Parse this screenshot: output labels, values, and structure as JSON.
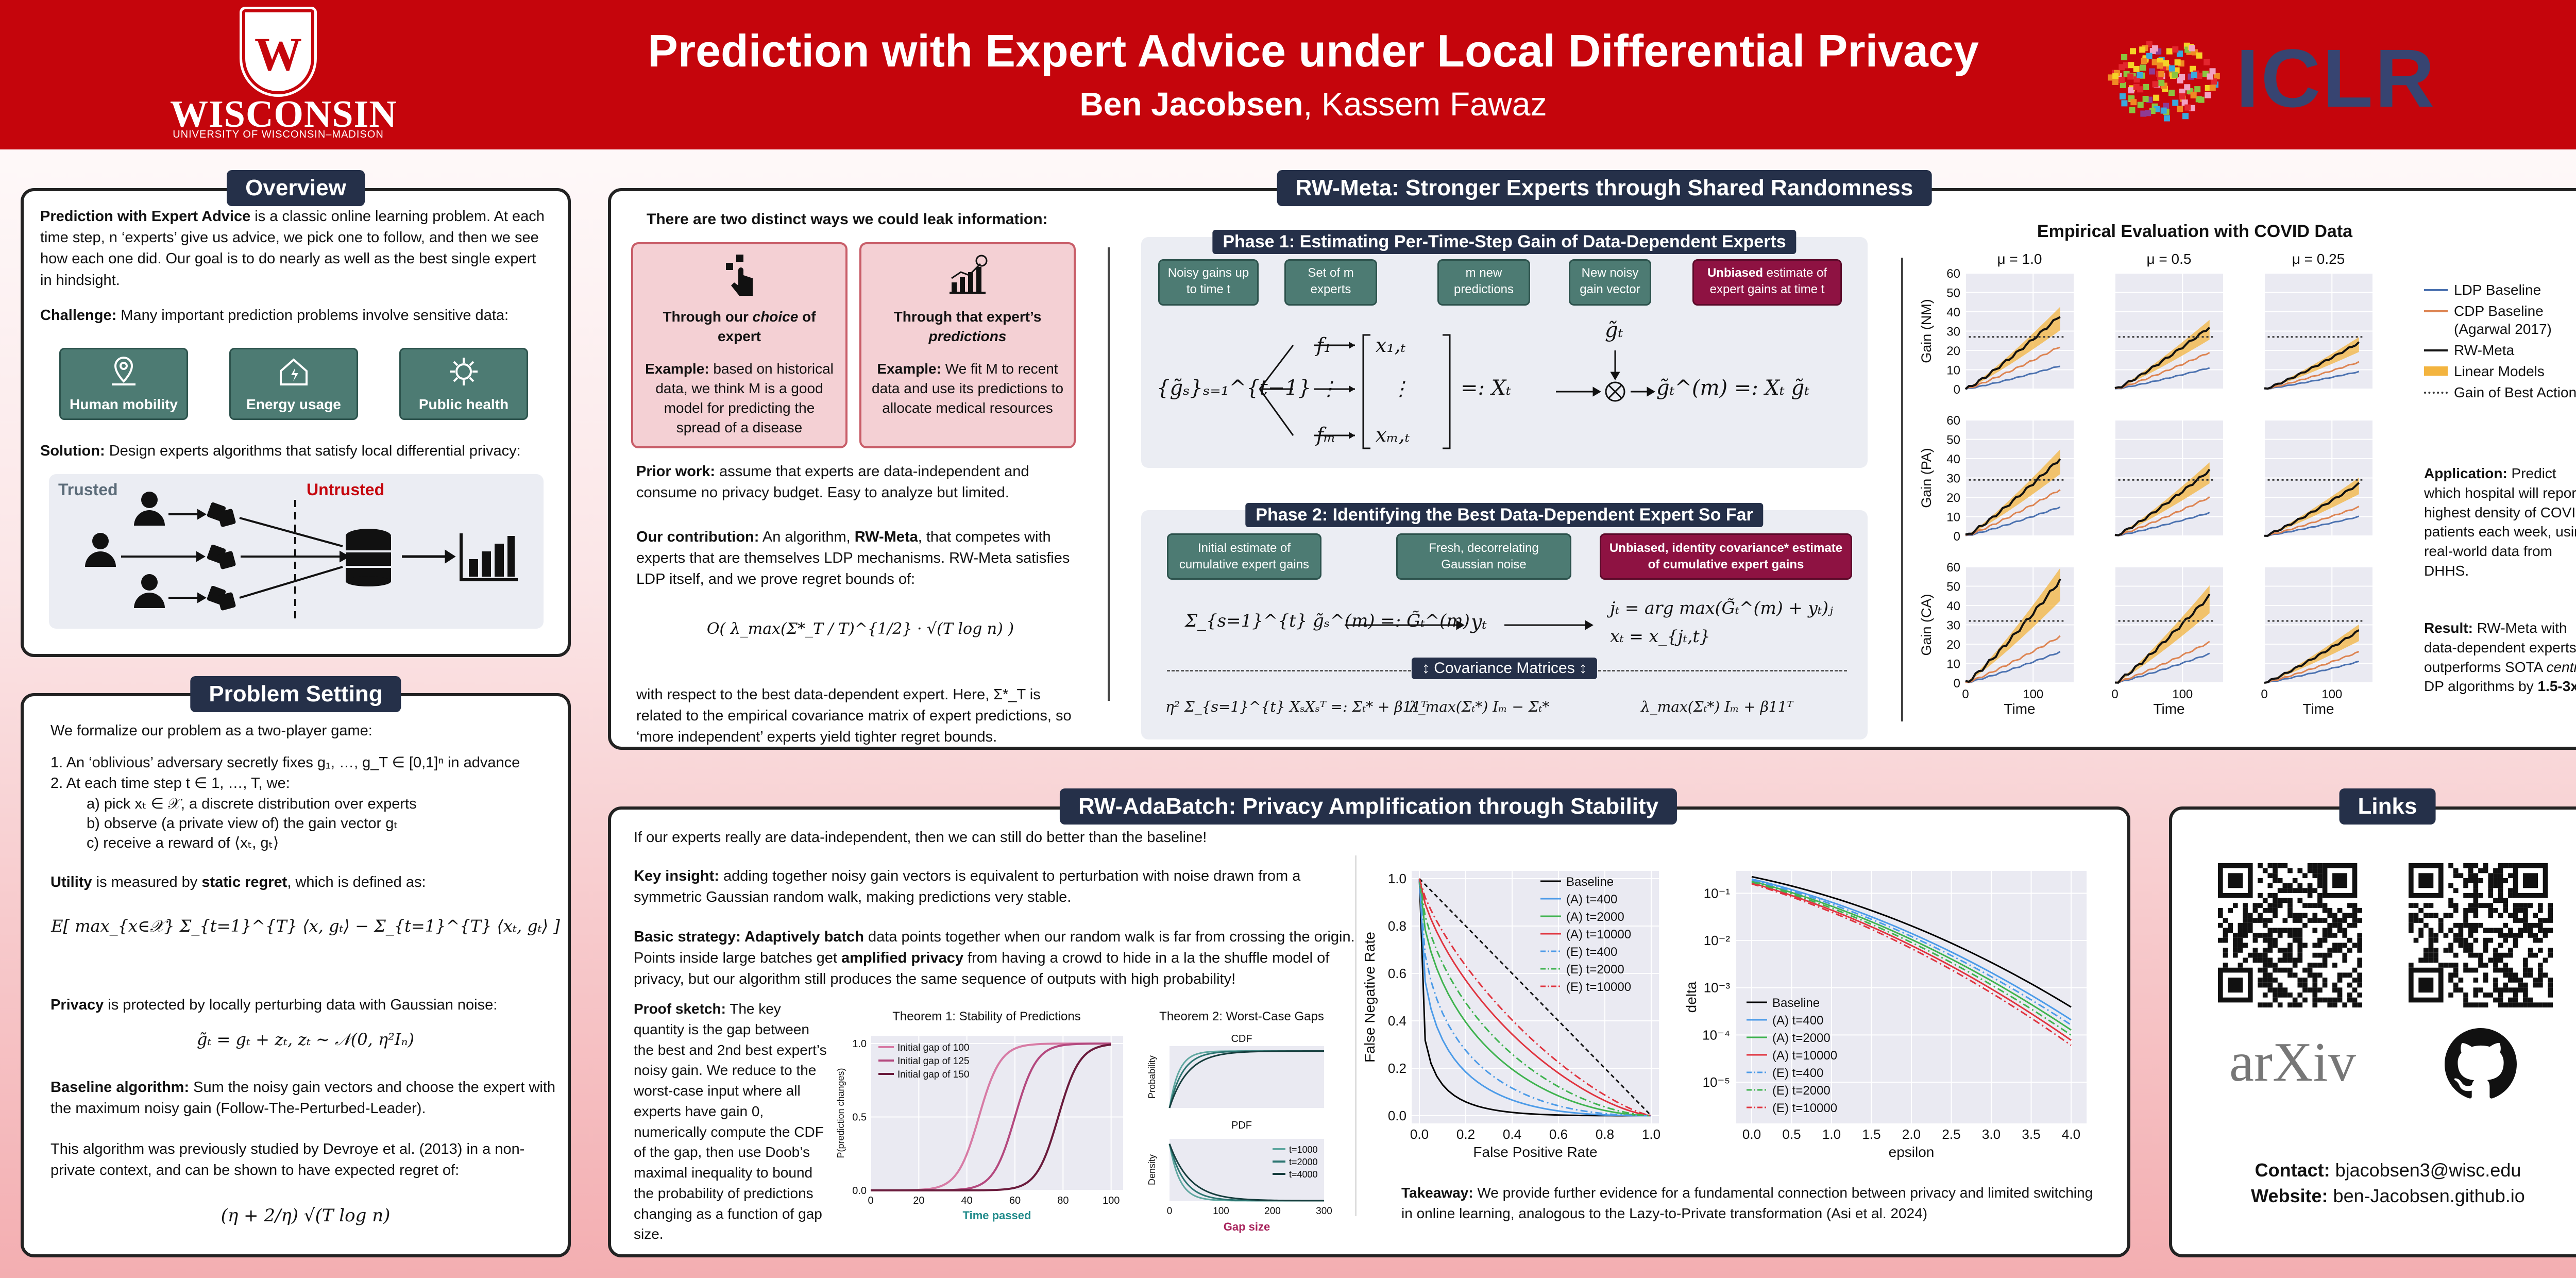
{
  "header": {
    "uw_logo": {
      "word": "WISCONSIN",
      "sub": "UNIVERSITY OF WISCONSIN–MADISON"
    },
    "title": "Prediction with Expert Advice under Local Differential Privacy",
    "author_main": "Ben Jacobsen",
    "author_rest": ", Kassem Fawaz",
    "conference": "ICLR",
    "colors": {
      "header": "#c5050c",
      "panel_title": "#253049",
      "teal": "#4d7b73",
      "maroon": "#8e1242"
    }
  },
  "overview": {
    "title": "Overview",
    "p1_bold": "Prediction with Expert Advice",
    "p1_rest": " is a classic online learning problem. At each time step, n ‘experts’ give us advice, we pick one to follow, and then we see how each one did. Our goal is to do nearly as well as the best single expert in hindsight.",
    "challenge_bold": "Challenge:",
    "challenge_rest": " Many important prediction problems involve sensitive data:",
    "tiles": [
      "Human mobility",
      "Energy usage",
      "Public health"
    ],
    "solution_bold": "Solution:",
    "solution_rest": " Design experts algorithms that satisfy local differential privacy:",
    "trusted": "Trusted",
    "untrusted": "Untrusted"
  },
  "setting": {
    "title": "Problem Setting",
    "intro": "We formalize our problem as a two-player game:",
    "steps": [
      "1.  An ‘oblivious’ adversary secretly fixes g₁, …, g_T ∈ [0,1]ⁿ in advance",
      "2.  At each time step t ∈ 1, …, T, we:"
    ],
    "substeps": [
      "a)  pick xₜ ∈ 𝒳, a discrete distribution over experts",
      "b)  observe (a private view of) the gain vector gₜ",
      "c)  receive a reward of ⟨xₜ, gₜ⟩"
    ],
    "utility_bold1": "Utility",
    "utility_mid": " is measured by ",
    "utility_bold2": "static regret",
    "utility_rest": ", which is defined as:",
    "regret_eq": "E[ max_{x∈𝒳} Σ_{t=1}^{T} ⟨x, gₜ⟩ − Σ_{t=1}^{T} ⟨xₜ, gₜ⟩ ]",
    "privacy_bold": "Privacy",
    "privacy_rest": " is protected by locally perturbing data with Gaussian noise:",
    "noise_eq": "g̃ₜ = gₜ + zₜ,    zₜ ∼ 𝒩(0, η²Iₙ)",
    "baseline_bold": "Baseline algorithm:",
    "baseline_rest": " Sum the noisy gain vectors and choose the expert with the maximum noisy gain (Follow-The-Perturbed-Leader).",
    "prior": "This algorithm was previously studied by Devroye et al. (2013) in a non-private context, and can be shown to have expected regret of:",
    "bound_eq": "(η + 2/η) √(T log n)"
  },
  "meta": {
    "title": "RW-Meta: Stronger Experts through Shared Randomness",
    "leak_title": "There are two distinct ways we could leak information:",
    "leak_cards": [
      {
        "head_pre": "Through our ",
        "head_em": "choice",
        "head_post": " of expert",
        "ex_bold": "Example:",
        "ex_rest": " based on historical data, we think M is a good model for predicting the spread of a disease"
      },
      {
        "head_pre": "Through that expert’s ",
        "head_em": "predictions",
        "head_post": "",
        "ex_bold": "Example:",
        "ex_rest": " We fit M to recent data and use its predictions to allocate medical resources"
      }
    ],
    "prior_bold": "Prior work:",
    "prior_rest": " assume that experts are data-independent and consume no privacy budget. Easy to analyze but limited.",
    "contrib_bold": "Our contribution:",
    "contrib_mid": " An algorithm, ",
    "contrib_alg": "RW-Meta",
    "contrib_rest": ", that competes with experts that are themselves LDP mechanisms. RW-Meta satisfies LDP itself, and we prove regret bounds of:",
    "bound_eq": "O( λ_max(Σ*_T / T)^{1/2} · √(T log n) )",
    "after": "with respect to the best data-dependent expert. Here, Σ*_T is related to the empirical covariance matrix of expert predictions, so ‘more independent’ experts yield tighter regret bounds.",
    "phase1_title": "Phase 1: Estimating Per-Time-Step Gain of Data-Dependent Experts",
    "phase1_boxes": [
      "Noisy gains up to time t",
      "Set of m experts",
      "m new predictions",
      "New noisy gain vector"
    ],
    "phase1_unbiased_bold": "Unbiased",
    "phase1_unbiased_rest": " estimate of expert gains at time t",
    "phase1_eq_left": "{g̃ₛ}ₛ₌₁^{t−1}",
    "phase1_experts": [
      "f₁",
      "⋮",
      "fₘ"
    ],
    "phase1_vec": [
      "x₁,ₜ",
      "⋮",
      "xₘ,ₜ"
    ],
    "phase1_eq_xt": "=: Xₜ",
    "phase1_gt": "g̃ₜ",
    "phase1_eq_right": "g̃ₜ^(m) =: Xₜ g̃ₜ",
    "phase2_title": "Phase 2: Identifying the Best Data-Dependent Expert So Far",
    "phase2_boxes": [
      "Initial estimate of cumulative expert gains",
      "Fresh, decorrelating Gaussian noise"
    ],
    "phase2_unbiased": "Unbiased, identity covariance* estimate of cumulative expert gains",
    "phase2_eq_left": "Σ_{s=1}^{t} g̃ₛ^(m) =: G̃ₜ^(m)",
    "phase2_yt": "yₜ",
    "phase2_eq_right1": "jₜ = arg max(G̃ₜ^(m) + yₜ)ⱼ",
    "phase2_eq_right2": "xₜ = x_{jₜ,t}",
    "cov_label": "↕  Covariance Matrices  ↕",
    "cov_eqs": [
      "η² Σ_{s=1}^{t} XₛXₛᵀ =: Σₜ* + β11ᵀ",
      "λ_max(Σₜ*) Iₘ − Σₜ*",
      "λ_max(Σₜ*) Iₘ + β11ᵀ"
    ],
    "app_bold": "Application:",
    "app_rest": " Predict which hospital will report highest density of COVID patients each week, using real-world data from DHHS.",
    "res_bold": "Result:",
    "res_rest1": " RW-Meta with data-dependent experts outperforms SOTA ",
    "res_em": "central",
    "res_rest2": " DP algorithms by ",
    "res_factor": "1.5-3x",
    "res_end": "!"
  },
  "chart_data": [
    {
      "type": "line",
      "title": "Empirical Evaluation with COVID Data",
      "panels_cols": [
        "μ = 1.0",
        "μ = 0.5",
        "μ = 0.25"
      ],
      "panels_rows": [
        "Gain (NM)",
        "Gain (PA)",
        "Gain (CA)"
      ],
      "xlabel": "Time",
      "x_ticks": [
        0,
        100
      ],
      "y_ticks": [
        0,
        10,
        20,
        30,
        40,
        50,
        60
      ],
      "ylim": [
        0,
        60
      ],
      "legend": [
        "LDP Baseline",
        "CDP Baseline (Agarwal 2017)",
        "RW-Meta",
        "Linear Models",
        "Gain of Best Action"
      ],
      "colors": {
        "ldp": "#4c72b0",
        "cdp": "#dd8452",
        "meta": "#111111",
        "linear": "#f3b43f",
        "best": "#333333"
      },
      "final": {
        "ldp": [
          [
            12,
            11,
            9
          ],
          [
            15,
            12,
            10
          ],
          [
            16,
            15,
            11
          ]
        ],
        "cdp": [
          [
            22,
            19,
            14
          ],
          [
            24,
            20,
            15
          ],
          [
            24,
            21,
            16
          ]
        ],
        "meta": [
          [
            38,
            32,
            24
          ],
          [
            40,
            34,
            27
          ],
          [
            53,
            45,
            27
          ]
        ],
        "best": [
          [
            27,
            27,
            27
          ],
          [
            29,
            29,
            29
          ],
          [
            32,
            32,
            32
          ]
        ]
      }
    },
    {
      "type": "line",
      "title": "Theorem 1: Stability of Predictions",
      "xlabel": "Time passed",
      "ylabel": "P(prediction changes)",
      "x_ticks": [
        0,
        20,
        40,
        60,
        80,
        100
      ],
      "y_ticks": [
        0.0,
        0.5,
        1.0
      ],
      "series": [
        {
          "name": "Initial gap of 100",
          "mid": 45
        },
        {
          "name": "Initial gap of 125",
          "mid": 60
        },
        {
          "name": "Initial gap of 150",
          "mid": 78
        }
      ]
    },
    {
      "type": "line",
      "title": "Theorem 2: Worst-Case Gaps",
      "subtitles": [
        "CDF",
        "PDF"
      ],
      "xlabel": "Gap size",
      "ylabels": [
        "Probability",
        "Density"
      ],
      "x_ticks": [
        0,
        100,
        200,
        300
      ],
      "series": [
        "t=1000",
        "t=2000",
        "t=4000"
      ]
    },
    {
      "type": "line",
      "xlabel": "False Positive Rate",
      "ylabel": "False Negative Rate",
      "x_ticks": [
        0.0,
        0.2,
        0.4,
        0.6,
        0.8,
        1.0
      ],
      "y_ticks": [
        0.0,
        0.2,
        0.4,
        0.6,
        0.8,
        1.0
      ],
      "series": [
        {
          "name": "Baseline",
          "style": "solid",
          "color": "#000000"
        },
        {
          "name": "(A) t=400",
          "style": "solid",
          "color": "#4c9be8"
        },
        {
          "name": "(A) t=2000",
          "style": "solid",
          "color": "#3fb34f"
        },
        {
          "name": "(A) t=10000",
          "style": "solid",
          "color": "#e0343f"
        },
        {
          "name": "(E) t=400",
          "style": "dashdot",
          "color": "#4c9be8"
        },
        {
          "name": "(E) t=2000",
          "style": "dashdot",
          "color": "#3fb34f"
        },
        {
          "name": "(E) t=10000",
          "style": "dashdot",
          "color": "#e0343f"
        }
      ]
    },
    {
      "type": "line",
      "xlabel": "epsilon",
      "ylabel": "delta",
      "x_ticks": [
        0.0,
        0.5,
        1.0,
        1.5,
        2.0,
        2.5,
        3.0,
        3.5,
        4.0
      ],
      "y_ticks": [
        "10⁻¹",
        "10⁻²",
        "10⁻³",
        "10⁻⁴",
        "10⁻⁵"
      ],
      "y_scale": "log",
      "series": [
        "Baseline",
        "(A) t=400",
        "(A) t=2000",
        "(A) t=10000",
        "(E) t=400",
        "(E) t=2000",
        "(E) t=10000"
      ]
    }
  ],
  "adabatch": {
    "title": "RW-AdaBatch: Privacy Amplification through Stability",
    "p1": "If our experts really are data-independent, then we can still do better than the baseline!",
    "insight_bold": "Key insight:",
    "insight_rest": " adding together noisy gain vectors is equivalent to perturbation with noise drawn from a symmetric Gaussian random walk, making predictions very stable.",
    "strategy_bold": "Basic strategy:",
    "strategy_bold2": " Adaptively batch",
    "strategy_rest": " data points together when our random walk is far from crossing the origin. Points inside large batches get ",
    "strategy_bold3": "amplified privacy",
    "strategy_end": " from having a crowd to hide in a la the shuffle model of privacy, but our algorithm still produces the same sequence of outputs with high probability!",
    "proof_bold": "Proof sketch:",
    "proof_rest": " The key quantity is the gap between the best and 2nd best expert’s noisy gain. We reduce to the worst-case input where all experts have gain 0, numerically compute the CDF of the gap, then use Doob’s maximal inequality to bound the probability of predictions changing as a function of gap size.",
    "takeaway_bold": "Takeaway:",
    "takeaway_rest": " We provide further evidence for a fundamental connection between privacy and limited switching in online learning, analogous to the Lazy-to-Private transformation (Asi et al. 2024)"
  },
  "links": {
    "title": "Links",
    "arxiv": "arXiv",
    "contact_bold": "Contact:",
    "contact": " bjacobsen3@wisc.edu",
    "website_bold": "Website:",
    "website": " ben-Jacobsen.github.io"
  }
}
